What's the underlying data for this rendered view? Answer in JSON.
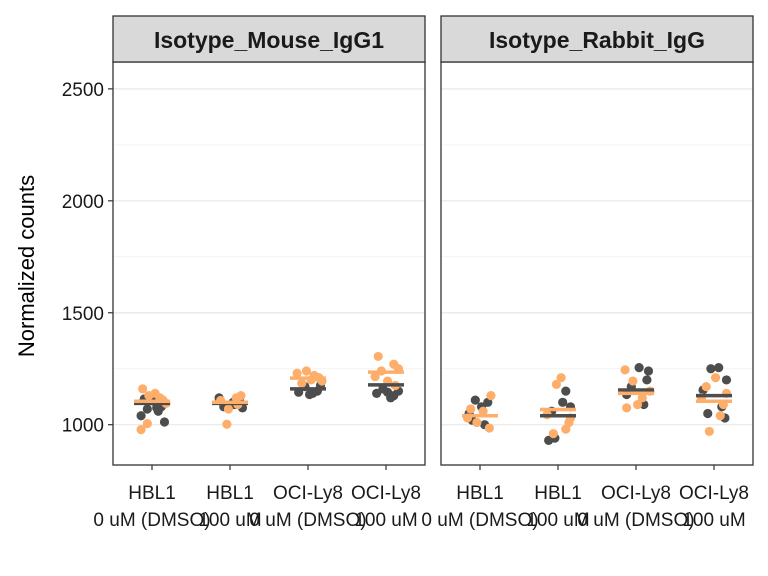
{
  "chart_data": {
    "type": "scatter",
    "ylabel": "Normalized counts",
    "xlabel": "",
    "ylim": [
      820,
      2620
    ],
    "yticks": [
      1000,
      1500,
      2000,
      2500
    ],
    "y_tick_labels": [
      "1000",
      "1500",
      "2000",
      "2500"
    ],
    "categories": [
      {
        "line1": "HBL1",
        "line2": "0 uM (DMSO)"
      },
      {
        "line1": "HBL1",
        "line2": "100 uM"
      },
      {
        "line1": "OCI-Ly8",
        "line2": "0 uM (DMSO)"
      },
      {
        "line1": "OCI-Ly8",
        "line2": "100 uM"
      }
    ],
    "colors": {
      "series_a": "#4d4d4d",
      "series_b": "#fdae6b",
      "strip_fill": "#d9d9d9",
      "grid": "#ebebeb"
    },
    "legend": "none",
    "panels": [
      {
        "title": "Isotype_Mouse_IgG1",
        "groups": [
          {
            "mean_a": 1095,
            "mean_b": 1105,
            "points_a": [
              [
                -0.14,
                1040
              ],
              [
                -0.06,
                1070
              ],
              [
                0.06,
                1075
              ],
              [
                0.12,
                1080
              ],
              [
                0.02,
                1105
              ],
              [
                -0.1,
                1115
              ],
              [
                0.16,
                1012
              ],
              [
                0.08,
                1060
              ]
            ],
            "points_b": [
              [
                -0.12,
                1160
              ],
              [
                -0.04,
                1130
              ],
              [
                0.1,
                1120
              ],
              [
                0.14,
                1110
              ],
              [
                -0.06,
                1005
              ],
              [
                -0.14,
                978
              ],
              [
                0.04,
                1140
              ],
              [
                0.18,
                1095
              ]
            ]
          },
          {
            "mean_a": 1095,
            "mean_b": 1100,
            "points_a": [
              [
                -0.08,
                1080
              ],
              [
                0.04,
                1100
              ],
              [
                0.12,
                1110
              ],
              [
                -0.14,
                1120
              ],
              [
                0.06,
                1090
              ],
              [
                0.16,
                1075
              ]
            ],
            "points_b": [
              [
                -0.12,
                1108
              ],
              [
                -0.02,
                1070
              ],
              [
                0.08,
                1120
              ],
              [
                0.14,
                1130
              ],
              [
                -0.04,
                1002
              ],
              [
                0.1,
                1090
              ]
            ]
          },
          {
            "mean_a": 1160,
            "mean_b": 1208,
            "points_a": [
              [
                -0.12,
                1145
              ],
              [
                0.02,
                1135
              ],
              [
                0.12,
                1150
              ],
              [
                -0.04,
                1170
              ],
              [
                0.16,
                1175
              ],
              [
                0.06,
                1140
              ]
            ],
            "points_b": [
              [
                -0.14,
                1230
              ],
              [
                -0.02,
                1240
              ],
              [
                0.08,
                1220
              ],
              [
                0.14,
                1210
              ],
              [
                0.18,
                1195
              ],
              [
                -0.08,
                1185
              ],
              [
                0.04,
                1200
              ]
            ]
          },
          {
            "mean_a": 1178,
            "mean_b": 1235,
            "points_a": [
              [
                -0.12,
                1140
              ],
              [
                0.02,
                1145
              ],
              [
                0.1,
                1130
              ],
              [
                0.06,
                1120
              ],
              [
                -0.04,
                1160
              ],
              [
                0.16,
                1150
              ]
            ],
            "points_b": [
              [
                -0.1,
                1305
              ],
              [
                0.1,
                1270
              ],
              [
                0.16,
                1250
              ],
              [
                -0.14,
                1215
              ],
              [
                0.02,
                1195
              ],
              [
                0.12,
                1175
              ],
              [
                -0.06,
                1240
              ]
            ]
          }
        ]
      },
      {
        "title": "Isotype_Rabbit_IgG",
        "groups": [
          {
            "mean_a": 1040,
            "mean_b": 1040,
            "points_a": [
              [
                -0.14,
                1050
              ],
              [
                -0.06,
                1110
              ],
              [
                0.02,
                1080
              ],
              [
                0.1,
                1100
              ],
              [
                -0.1,
                1020
              ],
              [
                0.06,
                1000
              ]
            ],
            "points_b": [
              [
                0.14,
                1130
              ],
              [
                -0.12,
                1070
              ],
              [
                0.04,
                1060
              ],
              [
                -0.04,
                1010
              ],
              [
                0.12,
                985
              ],
              [
                -0.16,
                1030
              ]
            ]
          },
          {
            "mean_a": 1040,
            "mean_b": 1068,
            "points_a": [
              [
                -0.12,
                930
              ],
              [
                -0.04,
                940
              ],
              [
                0.1,
                1150
              ],
              [
                0.16,
                1080
              ],
              [
                0.06,
                1100
              ],
              [
                -0.08,
                1060
              ]
            ],
            "points_b": [
              [
                0.04,
                1210
              ],
              [
                -0.02,
                1180
              ],
              [
                0.16,
                1030
              ],
              [
                0.1,
                980
              ],
              [
                -0.14,
                1045
              ],
              [
                -0.06,
                960
              ],
              [
                0.14,
                1010
              ]
            ]
          },
          {
            "mean_a": 1155,
            "mean_b": 1140,
            "points_a": [
              [
                0.04,
                1255
              ],
              [
                0.16,
                1240
              ],
              [
                0.14,
                1200
              ],
              [
                -0.06,
                1170
              ],
              [
                0.1,
                1090
              ],
              [
                -0.12,
                1135
              ]
            ],
            "points_b": [
              [
                -0.14,
                1245
              ],
              [
                -0.04,
                1195
              ],
              [
                0.08,
                1120
              ],
              [
                -0.12,
                1075
              ],
              [
                0.02,
                1090
              ],
              [
                0.18,
                1150
              ]
            ]
          },
          {
            "mean_a": 1130,
            "mean_b": 1105,
            "points_a": [
              [
                -0.04,
                1250
              ],
              [
                0.06,
                1255
              ],
              [
                0.16,
                1200
              ],
              [
                -0.14,
                1155
              ],
              [
                0.1,
                1080
              ],
              [
                -0.08,
                1050
              ],
              [
                0.14,
                1030
              ]
            ],
            "points_b": [
              [
                0.02,
                1210
              ],
              [
                -0.1,
                1170
              ],
              [
                0.12,
                1090
              ],
              [
                -0.16,
                1120
              ],
              [
                0.08,
                1040
              ],
              [
                -0.06,
                970
              ],
              [
                0.16,
                1140
              ]
            ]
          }
        ]
      }
    ]
  }
}
